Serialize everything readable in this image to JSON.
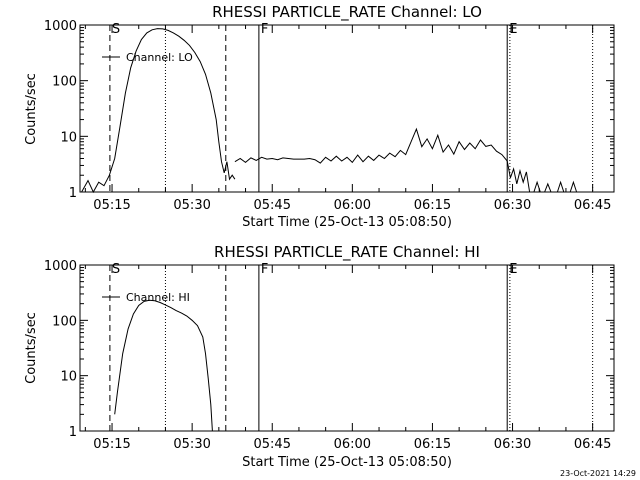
{
  "timestamp": "23-Oct-2021 14:29",
  "chart_data": [
    {
      "type": "line",
      "title": "RHESSI PARTICLE_RATE Channel: LO",
      "xlabel": "Start Time (25-Oct-13 05:08:50)",
      "ylabel": "Counts/sec",
      "y_scale": "log",
      "ylim": [
        1,
        1000
      ],
      "xlim": [
        "05:09",
        "06:49"
      ],
      "x_ticks": [
        "05:15",
        "05:30",
        "05:45",
        "06:00",
        "06:15",
        "06:30",
        "06:45"
      ],
      "y_ticks": [
        "1",
        "10",
        "100",
        "1000"
      ],
      "grid": false,
      "legend": {
        "position": "top-left",
        "label": "Channel: LO"
      },
      "markers": [
        {
          "label": "S",
          "time": "05:14.6",
          "style": "dashed"
        },
        {
          "label": "",
          "time": "05:25.0",
          "style": "dotted"
        },
        {
          "label": "",
          "time": "05:36.3",
          "style": "dashed"
        },
        {
          "label": "F",
          "time": "05:42.5",
          "style": "solid"
        },
        {
          "label": "E",
          "time": "06:29.0",
          "style": "solid"
        },
        {
          "label": "",
          "time": "06:29.5",
          "style": "dotted"
        },
        {
          "label": "",
          "time": "06:45.0",
          "style": "dotted"
        }
      ],
      "series": [
        {
          "name": "Channel: LO",
          "segments": [
            [
              [
                "05:09.3",
                1.0
              ],
              [
                "05:10.5",
                1.6
              ],
              [
                "05:11.5",
                1.0
              ],
              [
                "05:12.5",
                1.5
              ],
              [
                "05:13.5",
                1.3
              ],
              [
                "05:14.5",
                2.0
              ],
              [
                "05:15.5",
                4.0
              ],
              [
                "05:16.5",
                15
              ],
              [
                "05:17.5",
                60
              ],
              [
                "05:18.5",
                170
              ],
              [
                "05:19.5",
                340
              ],
              [
                "05:20.5",
                550
              ],
              [
                "05:21.5",
                720
              ],
              [
                "05:22.5",
                820
              ],
              [
                "05:23.5",
                860
              ],
              [
                "05:24.5",
                850
              ],
              [
                "05:25.5",
                800
              ],
              [
                "05:26.5",
                720
              ],
              [
                "05:27.5",
                630
              ],
              [
                "05:28.5",
                530
              ],
              [
                "05:29.5",
                430
              ],
              [
                "05:30.5",
                320
              ],
              [
                "05:31.5",
                220
              ],
              [
                "05:32.5",
                130
              ],
              [
                "05:33.5",
                60
              ],
              [
                "05:34.5",
                20
              ],
              [
                "05:35.0",
                8
              ],
              [
                "05:35.5",
                3.5
              ],
              [
                "05:36.0",
                2.2
              ],
              [
                "05:36.5",
                3.5
              ],
              [
                "05:37.0",
                1.7
              ],
              [
                "05:37.5",
                2.0
              ],
              [
                "05:38.0",
                1.7
              ]
            ],
            [
              [
                "05:38.0",
                3.5
              ],
              [
                "05:39.0",
                4.0
              ],
              [
                "05:40.0",
                3.4
              ],
              [
                "05:41.0",
                4.1
              ],
              [
                "05:42.0",
                3.7
              ],
              [
                "05:43.0",
                4.2
              ],
              [
                "05:44.0",
                3.9
              ],
              [
                "05:45.0",
                4.0
              ],
              [
                "05:46.0",
                3.8
              ],
              [
                "05:47.0",
                4.1
              ],
              [
                "05:48.0",
                4.0
              ],
              [
                "05:49.0",
                3.9
              ],
              [
                "05:50.0",
                3.9
              ],
              [
                "05:51.0",
                3.9
              ],
              [
                "05:52.0",
                4.0
              ],
              [
                "05:53.0",
                3.8
              ],
              [
                "05:54.0",
                3.3
              ],
              [
                "05:55.0",
                4.2
              ],
              [
                "05:56.0",
                3.6
              ],
              [
                "05:57.0",
                4.4
              ],
              [
                "05:58.0",
                3.6
              ],
              [
                "05:59.0",
                4.2
              ],
              [
                "06:00.0",
                3.4
              ],
              [
                "06:01.0",
                4.6
              ],
              [
                "06:02.0",
                3.5
              ],
              [
                "06:03.0",
                4.4
              ],
              [
                "06:04.0",
                3.7
              ],
              [
                "06:05.0",
                4.6
              ],
              [
                "06:06.0",
                4.0
              ],
              [
                "06:07.0",
                5.0
              ],
              [
                "06:08.0",
                4.3
              ],
              [
                "06:09.0",
                5.6
              ],
              [
                "06:10.0",
                4.7
              ],
              [
                "06:11.0",
                8.0
              ],
              [
                "06:12.0",
                13.5
              ],
              [
                "06:13.0",
                6.5
              ],
              [
                "06:14.0",
                9.0
              ],
              [
                "06:15.0",
                6.0
              ],
              [
                "06:16.0",
                10.5
              ],
              [
                "06:17.0",
                5.2
              ],
              [
                "06:18.0",
                7.0
              ],
              [
                "06:19.0",
                4.8
              ],
              [
                "06:20.0",
                8.0
              ],
              [
                "06:21.0",
                5.8
              ],
              [
                "06:22.0",
                7.6
              ],
              [
                "06:23.0",
                6.0
              ],
              [
                "06:24.0",
                8.6
              ],
              [
                "06:25.0",
                6.6
              ],
              [
                "06:26.0",
                7.0
              ],
              [
                "06:27.0",
                5.4
              ],
              [
                "06:28.0",
                4.7
              ],
              [
                "06:29.0",
                3.6
              ],
              [
                "06:29.6",
                1.8
              ]
            ],
            [
              [
                "06:29.6",
                1.8
              ],
              [
                "06:30.2",
                2.6
              ],
              [
                "06:30.8",
                1.4
              ],
              [
                "06:31.4",
                2.4
              ],
              [
                "06:32.0",
                1.5
              ],
              [
                "06:32.6",
                2.3
              ],
              [
                "06:33.2",
                1.0
              ],
              [
                "06:34.0",
                1.0
              ],
              [
                "06:34.6",
                1.5
              ],
              [
                "06:35.2",
                1.0
              ],
              [
                "06:36.0",
                1.0
              ],
              [
                "06:36.6",
                1.4
              ],
              [
                "06:37.2",
                1.0
              ],
              [
                "06:38.4",
                1.0
              ],
              [
                "06:39.0",
                1.5
              ],
              [
                "06:39.6",
                1.0
              ],
              [
                "06:40.8",
                1.0
              ],
              [
                "06:41.4",
                1.5
              ],
              [
                "06:42.0",
                1.0
              ]
            ]
          ]
        }
      ]
    },
    {
      "type": "line",
      "title": "RHESSI PARTICLE_RATE Channel: HI",
      "xlabel": "Start Time (25-Oct-13 05:08:50)",
      "ylabel": "Counts/sec",
      "y_scale": "log",
      "ylim": [
        1,
        1000
      ],
      "xlim": [
        "05:09",
        "06:49"
      ],
      "x_ticks": [
        "05:15",
        "05:30",
        "05:45",
        "06:00",
        "06:15",
        "06:30",
        "06:45"
      ],
      "y_ticks": [
        "1",
        "10",
        "100",
        "1000"
      ],
      "grid": false,
      "legend": {
        "position": "top-left",
        "label": "Channel: HI"
      },
      "markers": [
        {
          "label": "S",
          "time": "05:14.6",
          "style": "dashed"
        },
        {
          "label": "",
          "time": "05:25.0",
          "style": "dotted"
        },
        {
          "label": "",
          "time": "05:36.3",
          "style": "dashed"
        },
        {
          "label": "F",
          "time": "05:42.5",
          "style": "solid"
        },
        {
          "label": "E",
          "time": "06:29.0",
          "style": "solid"
        },
        {
          "label": "",
          "time": "06:29.5",
          "style": "dotted"
        },
        {
          "label": "",
          "time": "06:45.0",
          "style": "dotted"
        }
      ],
      "series": [
        {
          "name": "Channel: HI",
          "segments": [
            [
              [
                "05:15.5",
                2.0
              ],
              [
                "05:16.0",
                5
              ],
              [
                "05:17.0",
                25
              ],
              [
                "05:18.0",
                70
              ],
              [
                "05:19.0",
                130
              ],
              [
                "05:20.0",
                185
              ],
              [
                "05:21.0",
                220
              ],
              [
                "05:22.0",
                230
              ],
              [
                "05:23.0",
                225
              ],
              [
                "05:24.0",
                210
              ],
              [
                "05:25.0",
                190
              ],
              [
                "05:26.0",
                170
              ],
              [
                "05:27.0",
                150
              ],
              [
                "05:28.0",
                135
              ],
              [
                "05:29.0",
                120
              ],
              [
                "05:30.0",
                100
              ],
              [
                "05:31.0",
                80
              ],
              [
                "05:32.0",
                50
              ],
              [
                "05:32.5",
                25
              ],
              [
                "05:33.0",
                9
              ],
              [
                "05:33.5",
                3
              ],
              [
                "05:33.8",
                1.0
              ]
            ]
          ]
        }
      ]
    }
  ]
}
